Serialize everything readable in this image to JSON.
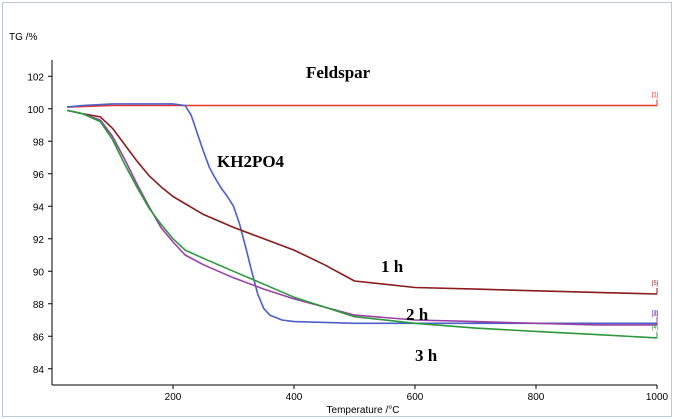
{
  "chart_data": {
    "type": "line",
    "ylabel": "TG /%",
    "xlabel": "Temperature /°C",
    "xlim": [
      0,
      1000
    ],
    "ylim": [
      83,
      103
    ],
    "x_ticks": [
      {
        "value": 200,
        "label": "200"
      },
      {
        "value": 400,
        "label": "400"
      },
      {
        "value": 600,
        "label": "600"
      },
      {
        "value": 800,
        "label": "800"
      },
      {
        "value": 1000,
        "label": "1000"
      }
    ],
    "y_ticks": [
      {
        "value": 84,
        "label": "84"
      },
      {
        "value": 86,
        "label": "86"
      },
      {
        "value": 88,
        "label": "88"
      },
      {
        "value": 90,
        "label": "90"
      },
      {
        "value": 92,
        "label": "92"
      },
      {
        "value": 94,
        "label": "94"
      },
      {
        "value": 96,
        "label": "96"
      },
      {
        "value": 98,
        "label": "98"
      },
      {
        "value": 100,
        "label": "100"
      },
      {
        "value": 102,
        "label": "102"
      }
    ],
    "grid": false,
    "series": [
      {
        "name": "Feldspar",
        "color": "#e8332c",
        "marker_label": "[1]",
        "x": [
          25,
          100,
          200,
          300,
          400,
          500,
          600,
          700,
          800,
          900,
          1000
        ],
        "y": [
          100.1,
          100.2,
          100.2,
          100.2,
          100.2,
          100.2,
          100.2,
          100.2,
          100.2,
          100.2,
          100.2
        ]
      },
      {
        "name": "KH2PO4",
        "color": "#4a5fc8",
        "marker_label": "[2]",
        "x": [
          25,
          50,
          100,
          150,
          200,
          220,
          230,
          240,
          250,
          260,
          270,
          280,
          290,
          300,
          310,
          320,
          330,
          340,
          350,
          360,
          380,
          400,
          500,
          600,
          700,
          800,
          900,
          1000
        ],
        "y": [
          100.1,
          100.2,
          100.3,
          100.3,
          100.3,
          100.2,
          99.6,
          98.5,
          97.4,
          96.4,
          95.7,
          95.1,
          94.6,
          94.0,
          92.9,
          91.5,
          90.0,
          88.6,
          87.7,
          87.3,
          87.0,
          86.9,
          86.8,
          86.8,
          86.8,
          86.8,
          86.8,
          86.8
        ]
      },
      {
        "name": "1 h",
        "color": "#8b1a1a",
        "marker_label": "[5]",
        "x": [
          25,
          50,
          80,
          100,
          120,
          140,
          160,
          180,
          200,
          250,
          300,
          350,
          400,
          450,
          500,
          600,
          700,
          800,
          900,
          1000
        ],
        "y": [
          99.9,
          99.7,
          99.5,
          98.8,
          97.8,
          96.8,
          95.9,
          95.2,
          94.6,
          93.5,
          92.7,
          92.0,
          91.3,
          90.4,
          89.4,
          89.0,
          88.9,
          88.8,
          88.7,
          88.6
        ]
      },
      {
        "name": "2 h",
        "color": "#9b3fa6",
        "marker_label": "[3]",
        "x": [
          25,
          50,
          80,
          100,
          120,
          140,
          160,
          180,
          200,
          220,
          250,
          300,
          350,
          400,
          450,
          500,
          600,
          700,
          800,
          900,
          1000
        ],
        "y": [
          99.9,
          99.7,
          99.3,
          98.3,
          96.9,
          95.4,
          94.0,
          92.7,
          91.8,
          91.0,
          90.4,
          89.6,
          88.9,
          88.3,
          87.8,
          87.3,
          87.0,
          86.9,
          86.8,
          86.7,
          86.7
        ]
      },
      {
        "name": "3 h",
        "color": "#2a9a3a",
        "marker_label": "[4]",
        "x": [
          25,
          50,
          80,
          100,
          120,
          140,
          160,
          180,
          200,
          220,
          250,
          300,
          350,
          400,
          450,
          500,
          600,
          700,
          800,
          900,
          1000
        ],
        "y": [
          99.9,
          99.7,
          99.2,
          98.1,
          96.6,
          95.2,
          93.9,
          92.9,
          92.0,
          91.3,
          90.8,
          90.0,
          89.2,
          88.4,
          87.8,
          87.2,
          86.8,
          86.5,
          86.3,
          86.1,
          85.9
        ]
      }
    ],
    "annotations": [
      {
        "text": "Feldspar"
      },
      {
        "text": "KH2PO4"
      },
      {
        "text": "1 h"
      },
      {
        "text": "2 h"
      },
      {
        "text": "3 h"
      }
    ]
  }
}
